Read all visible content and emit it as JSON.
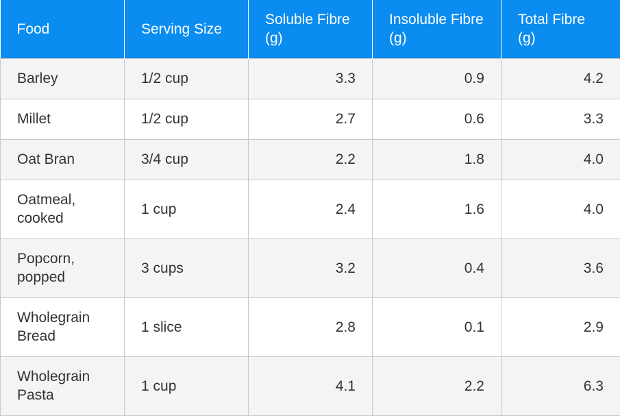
{
  "table": {
    "headers": [
      "Food",
      "Serving Size",
      "Soluble Fibre (g)",
      "Insoluble Fibre (g)",
      "Total Fibre (g)"
    ],
    "rows": [
      [
        "Barley",
        "1/2 cup",
        "3.3",
        "0.9",
        "4.2"
      ],
      [
        "Millet",
        "1/2 cup",
        "2.7",
        "0.6",
        "3.3"
      ],
      [
        "Oat Bran",
        "3/4 cup",
        "2.2",
        "1.8",
        "4.0"
      ],
      [
        "Oatmeal, cooked",
        "1 cup",
        "2.4",
        "1.6",
        "4.0"
      ],
      [
        "Popcorn, popped",
        "3 cups",
        "3.2",
        "0.4",
        "3.6"
      ],
      [
        "Wholegrain Bread",
        "1 slice",
        "2.8",
        "0.1",
        "2.9"
      ],
      [
        "Wholegrain Pasta",
        "1 cup",
        "4.1",
        "2.2",
        "6.3"
      ]
    ]
  },
  "colors": {
    "header_background": "#0a8cf0",
    "header_text": "#ffffff",
    "odd_row_background": "#f4f4f4",
    "even_row_background": "#ffffff",
    "border": "#c8c8c8",
    "text": "#333333"
  }
}
